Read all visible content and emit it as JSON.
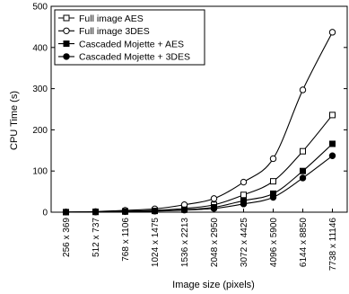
{
  "chart_data": {
    "type": "line",
    "xlabel": "Image size (pixels)",
    "ylabel": "CPU Time (s)",
    "ylim": [
      0,
      500
    ],
    "yticks": [
      0,
      100,
      200,
      300,
      400,
      500
    ],
    "categories": [
      "256 x 369",
      "512 x 737",
      "768 x 1106",
      "1024 x 1475",
      "1536 x 2213",
      "2048 x 2950",
      "3072 x 4425",
      "4096 x 5900",
      "6144 x 8850",
      "7738 x 11146"
    ],
    "legend_position": "top-left",
    "series": [
      {
        "name": "Full image AES",
        "marker": "open-square",
        "values": [
          0.2,
          1.0,
          2.3,
          4.5,
          9,
          18,
          42,
          75,
          148,
          236
        ]
      },
      {
        "name": "Full image 3DES",
        "marker": "open-circle",
        "values": [
          0.4,
          1.5,
          4.5,
          8,
          18,
          33,
          73,
          130,
          297,
          437
        ]
      },
      {
        "name": "Cascaded Mojette + AES",
        "marker": "filled-square",
        "values": [
          0.1,
          0.6,
          1.5,
          3,
          6,
          12,
          28,
          45,
          100,
          166
        ]
      },
      {
        "name": "Cascaded Mojette + 3DES",
        "marker": "filled-circle",
        "values": [
          0.1,
          0.5,
          1.3,
          2.5,
          5,
          9,
          20,
          36,
          83,
          137
        ]
      }
    ]
  }
}
